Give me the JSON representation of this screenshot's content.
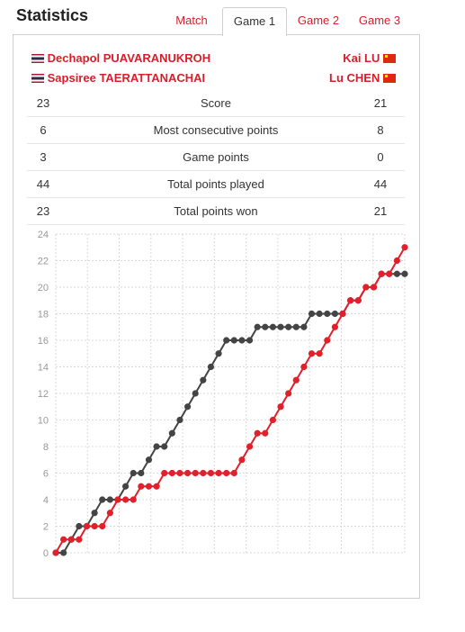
{
  "header": {
    "title": "Statistics"
  },
  "tabs": [
    {
      "label": "Match"
    },
    {
      "label": "Game 1"
    },
    {
      "label": "Game 2"
    },
    {
      "label": "Game 3"
    }
  ],
  "teams": {
    "left": {
      "flag_icon": "thailand-flag-icon",
      "players": [
        "Dechapol PUAVARANUKROH",
        "Sapsiree TAERATTANACHAI"
      ],
      "color": "#d4202a"
    },
    "right": {
      "flag_icon": "china-flag-icon",
      "players": [
        "Kai LU",
        "Lu CHEN"
      ],
      "color": "#d4202a"
    }
  },
  "stats": [
    {
      "left": "23",
      "label": "Score",
      "right": "21"
    },
    {
      "left": "6",
      "label": "Most consecutive points",
      "right": "8"
    },
    {
      "left": "3",
      "label": "Game points",
      "right": "0"
    },
    {
      "left": "44",
      "label": "Total points played",
      "right": "44"
    },
    {
      "left": "23",
      "label": "Total points won",
      "right": "21"
    }
  ],
  "chart_data": {
    "type": "line",
    "ylim": [
      0,
      24
    ],
    "yticks": [
      0,
      2,
      4,
      6,
      8,
      10,
      12,
      14,
      16,
      18,
      20,
      22,
      24
    ],
    "grid": true,
    "series": [
      {
        "color": "#e0202a",
        "values": [
          0,
          1,
          1,
          1,
          2,
          2,
          2,
          3,
          4,
          4,
          4,
          5,
          5,
          5,
          6,
          6,
          6,
          6,
          6,
          6,
          6,
          6,
          6,
          6,
          7,
          8,
          9,
          9,
          10,
          11,
          12,
          13,
          14,
          15,
          15,
          16,
          17,
          18,
          19,
          19,
          20,
          20,
          21,
          21,
          22,
          23
        ]
      },
      {
        "color": "#444444",
        "values": [
          0,
          0,
          1,
          2,
          2,
          3,
          4,
          4,
          4,
          5,
          6,
          6,
          7,
          8,
          8,
          9,
          10,
          11,
          12,
          13,
          14,
          15,
          16,
          16,
          16,
          16,
          17,
          17,
          17,
          17,
          17,
          17,
          17,
          18,
          18,
          18,
          18,
          18,
          19,
          19,
          20,
          20,
          21,
          21,
          21,
          21
        ]
      }
    ]
  }
}
